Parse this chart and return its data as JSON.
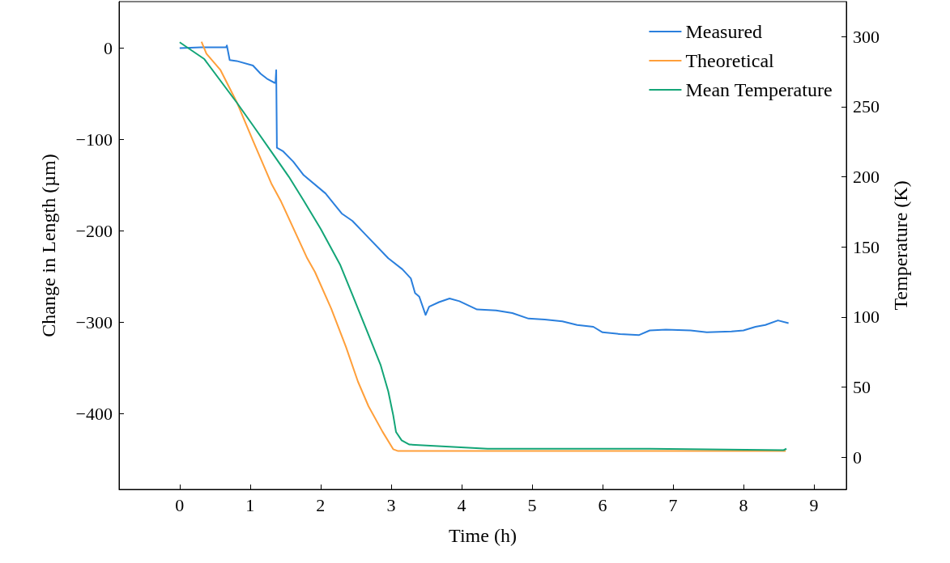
{
  "chart_data": {
    "type": "line",
    "xlabel": "Time (h)",
    "ylabel": "Change in Length (µm)",
    "y2label": "Temperature (K)",
    "xlim": [
      -0.86,
      9.46
    ],
    "xticks": [
      0,
      1,
      2,
      3,
      4,
      5,
      6,
      7,
      8,
      9
    ],
    "ylim": [
      -483,
      51
    ],
    "yticks": [
      -400,
      -300,
      -200,
      -100,
      0
    ],
    "y2lim": [
      -23,
      325
    ],
    "y2ticks": [
      0,
      50,
      100,
      150,
      200,
      250,
      300
    ],
    "grid": false,
    "legend": "top right",
    "series": [
      {
        "name": "Measured",
        "color": "#2a7fdd",
        "x": [
          0,
          0.3,
          0.58,
          0.66,
          0.67,
          0.71,
          0.81,
          1.04,
          1.15,
          1.25,
          1.35,
          1.36,
          1.37,
          1.38,
          1.47,
          1.61,
          1.76,
          2.07,
          2.3,
          2.45,
          2.65,
          2.96,
          3.16,
          3.28,
          3.34,
          3.4,
          3.49,
          3.54,
          3.68,
          3.83,
          3.97,
          4.22,
          4.49,
          4.72,
          4.95,
          5.18,
          5.43,
          5.64,
          5.87,
          6.0,
          6.25,
          6.52,
          6.67,
          6.9,
          7.25,
          7.48,
          7.83,
          8.0,
          8.17,
          8.31,
          8.49,
          8.64
        ],
        "values": [
          0,
          1,
          1,
          1,
          3,
          -13,
          -14,
          -19,
          -28,
          -34,
          -38,
          -38,
          -24,
          -109,
          -113,
          -124,
          -139,
          -159,
          -181,
          -189,
          -205,
          -230,
          -242,
          -252,
          -268,
          -272,
          -292,
          -283,
          -278,
          -274,
          -277,
          -286,
          -287,
          -290,
          -296,
          -297,
          -299,
          -303,
          -305,
          -311,
          -313,
          -314,
          -309,
          -308,
          -309,
          -311,
          -310,
          -309,
          -305,
          -303,
          -298,
          -301
        ]
      },
      {
        "name": "Theoretical",
        "color": "#ff9f3a",
        "x": [
          0.31,
          0.38,
          0.58,
          0.81,
          1.05,
          1.3,
          1.44,
          1.81,
          1.92,
          2.15,
          2.36,
          2.53,
          2.68,
          2.88,
          3.03,
          3.1,
          8.6
        ],
        "values": [
          7,
          -6,
          -24,
          -59,
          -103,
          -148,
          -168,
          -230,
          -245,
          -285,
          -327,
          -365,
          -392,
          -420,
          -439,
          -441,
          -441
        ]
      },
      {
        "name": "Mean Temperature",
        "color": "#13a577",
        "axis": "y2",
        "x": [
          0,
          0.35,
          0.81,
          1.05,
          1.3,
          1.55,
          1.76,
          2.0,
          2.28,
          2.45,
          2.65,
          2.85,
          2.96,
          3.03,
          3.07,
          3.15,
          3.26,
          4.37,
          6.67,
          8.57,
          8.61
        ],
        "values": [
          296,
          284,
          253,
          236,
          218,
          200,
          183,
          163,
          137,
          116,
          91,
          66,
          47,
          30,
          18,
          12,
          9,
          6,
          6,
          5,
          6
        ]
      }
    ]
  }
}
